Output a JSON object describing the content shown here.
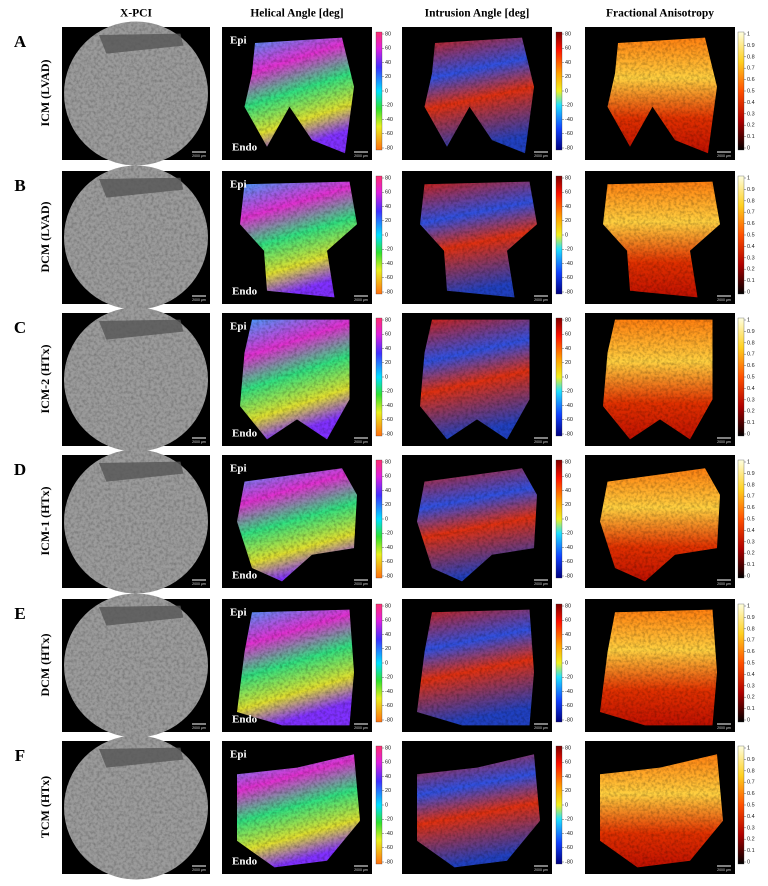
{
  "columns": [
    "X-PCI",
    "Helical Angle [deg]",
    "Intrusion Angle [deg]",
    "Fractional Anisotropy"
  ],
  "rows": [
    {
      "letter": "A",
      "label": "ICM (LVAD)"
    },
    {
      "letter": "B",
      "label": "DCM (LVAD)"
    },
    {
      "letter": "C",
      "label": "ICM-2 (HTx)"
    },
    {
      "letter": "D",
      "label": "ICM-1 (HTx)"
    },
    {
      "letter": "E",
      "label": "DCM (HTx)"
    },
    {
      "letter": "F",
      "label": "TCM (HTx)"
    }
  ],
  "annotations": {
    "epi": "Epi",
    "endo": "Endo",
    "scale_bar": "2000 μm"
  },
  "colorbars": {
    "angle_ticks": [
      80,
      60,
      40,
      20,
      0,
      -20,
      -40,
      -60,
      -80
    ],
    "fa_ticks": [
      1,
      0.9,
      0.8,
      0.7,
      0.6,
      0.5,
      0.4,
      0.3,
      0.2,
      0.1,
      0
    ]
  }
}
